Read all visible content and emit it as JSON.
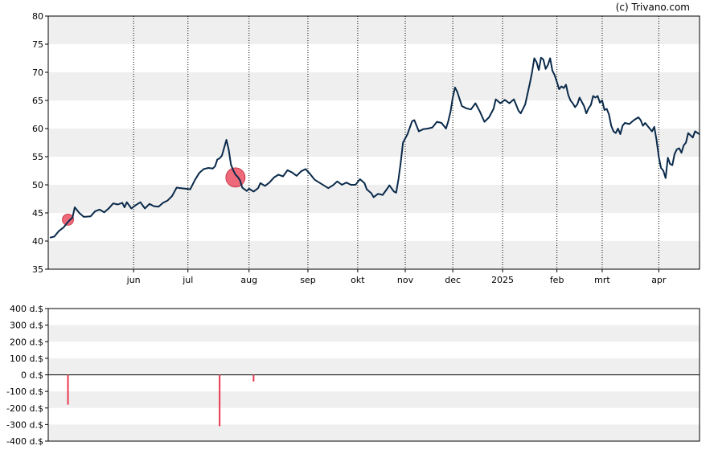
{
  "credit": "(c) Trivano.com",
  "chart_data": [
    {
      "type": "line",
      "title": "",
      "ylim": [
        35,
        80
      ],
      "y_ticks": [
        35,
        40,
        45,
        50,
        55,
        60,
        65,
        70,
        75,
        80
      ],
      "x_ticks": [
        {
          "label": "jun",
          "t": 37
        },
        {
          "label": "jul",
          "t": 61
        },
        {
          "label": "aug",
          "t": 88
        },
        {
          "label": "sep",
          "t": 114
        },
        {
          "label": "okt",
          "t": 136
        },
        {
          "label": "nov",
          "t": 157
        },
        {
          "label": "dec",
          "t": 178
        },
        {
          "label": "2025",
          "t": 200
        },
        {
          "label": "feb",
          "t": 224
        },
        {
          "label": "mrt",
          "t": 244
        },
        {
          "label": "apr",
          "t": 269
        }
      ],
      "grid": true,
      "series": [
        {
          "color": "#0a2a4a",
          "points": [
            [
              0,
              40.6
            ],
            [
              2,
              40.8
            ],
            [
              4,
              41.8
            ],
            [
              6,
              42.4
            ],
            [
              8,
              43.4
            ],
            [
              10,
              44.2
            ],
            [
              11,
              46.0
            ],
            [
              13,
              45.0
            ],
            [
              15,
              44.3
            ],
            [
              18,
              44.4
            ],
            [
              20,
              45.3
            ],
            [
              22,
              45.6
            ],
            [
              24,
              45.1
            ],
            [
              26,
              45.8
            ],
            [
              28,
              46.7
            ],
            [
              30,
              46.5
            ],
            [
              32,
              46.8
            ],
            [
              33,
              46.0
            ],
            [
              34,
              46.9
            ],
            [
              36,
              45.8
            ],
            [
              38,
              46.4
            ],
            [
              40,
              46.9
            ],
            [
              42,
              45.8
            ],
            [
              44,
              46.6
            ],
            [
              46,
              46.2
            ],
            [
              48,
              46.1
            ],
            [
              50,
              46.8
            ],
            [
              52,
              47.2
            ],
            [
              54,
              48.0
            ],
            [
              56,
              49.5
            ],
            [
              58,
              49.4
            ],
            [
              60,
              49.3
            ],
            [
              62,
              49.2
            ],
            [
              64,
              50.8
            ],
            [
              66,
              52.1
            ],
            [
              68,
              52.8
            ],
            [
              70,
              53.0
            ],
            [
              72,
              52.9
            ],
            [
              73,
              53.3
            ],
            [
              74,
              54.5
            ],
            [
              75,
              54.7
            ],
            [
              76,
              55.2
            ],
            [
              78,
              58.0
            ],
            [
              79,
              56.3
            ],
            [
              80,
              53.6
            ],
            [
              81,
              52.6
            ],
            [
              82,
              51.8
            ],
            [
              83,
              51.4
            ],
            [
              84,
              50.8
            ],
            [
              85,
              49.5
            ],
            [
              86,
              49.2
            ],
            [
              87,
              48.9
            ],
            [
              88,
              49.3
            ],
            [
              90,
              48.8
            ],
            [
              92,
              49.4
            ],
            [
              93,
              50.3
            ],
            [
              95,
              49.8
            ],
            [
              97,
              50.4
            ],
            [
              99,
              51.3
            ],
            [
              101,
              51.8
            ],
            [
              103,
              51.5
            ],
            [
              105,
              52.6
            ],
            [
              107,
              52.2
            ],
            [
              109,
              51.6
            ],
            [
              111,
              52.4
            ],
            [
              113,
              52.8
            ],
            [
              115,
              51.9
            ],
            [
              117,
              50.9
            ],
            [
              119,
              50.4
            ],
            [
              121,
              49.9
            ],
            [
              123,
              49.4
            ],
            [
              125,
              49.9
            ],
            [
              127,
              50.6
            ],
            [
              129,
              50.0
            ],
            [
              131,
              50.4
            ],
            [
              133,
              50.0
            ],
            [
              135,
              50.0
            ],
            [
              137,
              51.0
            ],
            [
              139,
              50.3
            ],
            [
              140,
              49.2
            ],
            [
              142,
              48.5
            ],
            [
              143,
              47.8
            ],
            [
              145,
              48.4
            ],
            [
              147,
              48.2
            ],
            [
              149,
              49.3
            ],
            [
              150,
              49.9
            ],
            [
              152,
              48.8
            ],
            [
              153,
              48.6
            ],
            [
              154,
              51.0
            ],
            [
              155,
              54.0
            ],
            [
              156,
              57.5
            ],
            [
              158,
              59.0
            ],
            [
              160,
              61.3
            ],
            [
              161,
              61.5
            ],
            [
              163,
              59.5
            ],
            [
              165,
              59.9
            ],
            [
              167,
              60.0
            ],
            [
              169,
              60.2
            ],
            [
              171,
              61.2
            ],
            [
              173,
              61.0
            ],
            [
              175,
              60.0
            ],
            [
              176,
              61.3
            ],
            [
              177,
              63.0
            ],
            [
              178,
              65.5
            ],
            [
              179,
              67.3
            ],
            [
              180,
              66.5
            ],
            [
              182,
              64.0
            ],
            [
              184,
              63.6
            ],
            [
              186,
              63.4
            ],
            [
              188,
              64.5
            ],
            [
              190,
              63.0
            ],
            [
              192,
              61.2
            ],
            [
              194,
              62.0
            ],
            [
              196,
              63.5
            ],
            [
              197,
              65.2
            ],
            [
              199,
              64.5
            ],
            [
              201,
              65.1
            ],
            [
              203,
              64.5
            ],
            [
              205,
              65.2
            ],
            [
              206,
              64.2
            ],
            [
              207,
              63.2
            ],
            [
              208,
              62.7
            ],
            [
              210,
              64.3
            ],
            [
              212,
              68.0
            ],
            [
              213,
              70.0
            ],
            [
              214,
              72.5
            ],
            [
              215,
              71.8
            ],
            [
              216,
              70.4
            ],
            [
              217,
              72.6
            ],
            [
              218,
              72.3
            ],
            [
              219,
              70.6
            ],
            [
              220,
              71.3
            ],
            [
              221,
              72.5
            ],
            [
              222,
              70.3
            ],
            [
              223,
              69.5
            ],
            [
              224,
              68.3
            ],
            [
              225,
              67.0
            ],
            [
              226,
              67.5
            ],
            [
              227,
              67.2
            ],
            [
              228,
              67.8
            ],
            [
              229,
              66.0
            ],
            [
              230,
              65.0
            ],
            [
              231,
              64.5
            ],
            [
              232,
              63.8
            ],
            [
              233,
              64.3
            ],
            [
              234,
              65.5
            ],
            [
              236,
              64.0
            ],
            [
              237,
              62.7
            ],
            [
              238,
              63.6
            ],
            [
              239,
              64.2
            ],
            [
              240,
              65.8
            ],
            [
              241,
              65.5
            ],
            [
              242,
              65.8
            ],
            [
              243,
              64.6
            ],
            [
              244,
              65.0
            ],
            [
              245,
              63.3
            ],
            [
              246,
              63.5
            ],
            [
              247,
              62.5
            ],
            [
              248,
              60.5
            ],
            [
              249,
              59.5
            ],
            [
              250,
              59.2
            ],
            [
              251,
              60.0
            ],
            [
              252,
              59.0
            ],
            [
              253,
              60.5
            ],
            [
              254,
              61.0
            ],
            [
              256,
              60.8
            ],
            [
              258,
              61.5
            ],
            [
              260,
              62.0
            ],
            [
              261,
              61.5
            ],
            [
              262,
              60.5
            ],
            [
              263,
              61.0
            ],
            [
              264,
              60.5
            ],
            [
              266,
              59.5
            ],
            [
              267,
              60.3
            ],
            [
              268,
              58.0
            ],
            [
              269,
              55.0
            ],
            [
              270,
              53.0
            ],
            [
              271,
              52.5
            ],
            [
              272,
              51.2
            ],
            [
              273,
              54.8
            ],
            [
              274,
              53.7
            ],
            [
              275,
              53.5
            ],
            [
              276,
              55.5
            ],
            [
              277,
              56.3
            ],
            [
              278,
              56.5
            ],
            [
              279,
              55.7
            ],
            [
              280,
              57.0
            ],
            [
              281,
              57.5
            ],
            [
              282,
              59.2
            ],
            [
              284,
              58.4
            ],
            [
              285,
              59.5
            ],
            [
              287,
              59.0
            ]
          ]
        }
      ],
      "markers": [
        {
          "t": 8,
          "value": 43.8,
          "size": "small",
          "color": "#e8384f"
        },
        {
          "t": 82,
          "value": 51.3,
          "size": "large",
          "color": "#e8384f"
        }
      ]
    },
    {
      "type": "bar",
      "title": "",
      "ylim": [
        -400,
        400
      ],
      "y_ticks": [
        {
          "value": 400,
          "label": "400 d.$"
        },
        {
          "value": 300,
          "label": "300 d.$"
        },
        {
          "value": 200,
          "label": "200 d.$"
        },
        {
          "value": 100,
          "label": "100 d.$"
        },
        {
          "value": 0,
          "label": "0 d.$"
        },
        {
          "value": -100,
          "label": "-100 d.$"
        },
        {
          "value": -200,
          "label": "-200 d.$"
        },
        {
          "value": -300,
          "label": "-300 d.$"
        },
        {
          "value": -400,
          "label": "-400 d.$"
        }
      ],
      "bars": [
        {
          "t": 8,
          "value": -180,
          "color": "#e8384f"
        },
        {
          "t": 75,
          "value": -310,
          "color": "#e8384f"
        },
        {
          "t": 90,
          "value": -40,
          "color": "#e8384f"
        }
      ]
    }
  ]
}
